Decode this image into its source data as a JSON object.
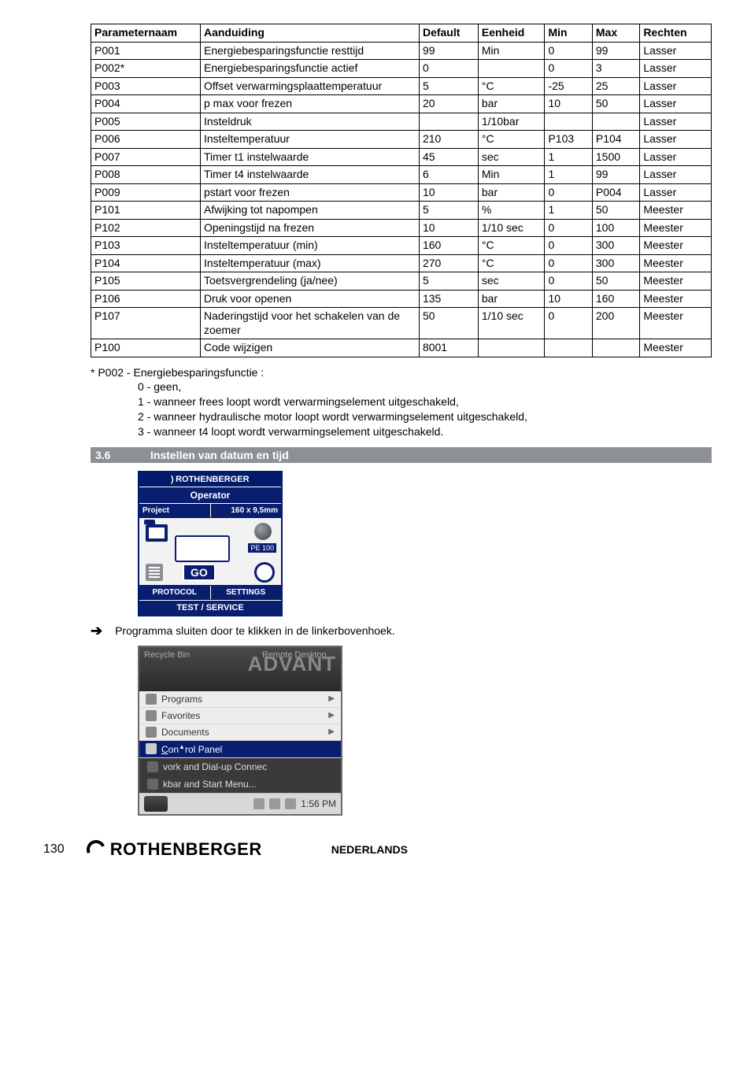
{
  "table": {
    "headers": [
      "Parameternaam",
      "Aanduiding",
      "Default",
      "Eenheid",
      "Min",
      "Max",
      "Rechten"
    ],
    "rows": [
      [
        "P001",
        "Energiebesparingsfunctie resttijd",
        "99",
        "Min",
        "0",
        "99",
        "Lasser"
      ],
      [
        "P002*",
        "Energiebesparingsfunctie actief",
        "0",
        "",
        "0",
        "3",
        "Lasser"
      ],
      [
        "P003",
        "Offset verwarmingsplaattemperatuur",
        "5",
        "°C",
        "-25",
        "25",
        "Lasser"
      ],
      [
        "P004",
        "p max voor frezen",
        "20",
        "bar",
        "10",
        "50",
        "Lasser"
      ],
      [
        "P005",
        "Insteldruk",
        "",
        "1/10bar",
        "",
        "",
        "Lasser"
      ],
      [
        "P006",
        "Insteltemperatuur",
        "210",
        "°C",
        "P103",
        "P104",
        "Lasser"
      ],
      [
        "P007",
        "Timer t1 instelwaarde",
        "45",
        "sec",
        "1",
        "1500",
        "Lasser"
      ],
      [
        "P008",
        "Timer t4 instelwaarde",
        "6",
        "Min",
        "1",
        "99",
        "Lasser"
      ],
      [
        "P009",
        "pstart voor frezen",
        "10",
        "bar",
        "0",
        "P004",
        "Lasser"
      ],
      [
        "P101",
        "Afwijking tot napompen",
        "5",
        "%",
        "1",
        "50",
        "Meester"
      ],
      [
        "P102",
        "Openingstijd na frezen",
        "10",
        "1/10 sec",
        "0",
        "100",
        "Meester"
      ],
      [
        "P103",
        "Insteltemperatuur (min)",
        "160",
        "°C",
        "0",
        "300",
        "Meester"
      ],
      [
        "P104",
        "Insteltemperatuur (max)",
        "270",
        "°C",
        "0",
        "300",
        "Meester"
      ],
      [
        "P105",
        "Toetsvergrendeling (ja/nee)",
        "5",
        "sec",
        "0",
        "50",
        "Meester"
      ],
      [
        "P106",
        "Druk voor openen",
        "135",
        "bar",
        "10",
        "160",
        "Meester"
      ],
      [
        "P107",
        "Naderingstijd voor het schakelen van de zoemer",
        "50",
        "1/10 sec",
        "0",
        "200",
        "Meester"
      ],
      [
        "P100",
        "Code wijzigen",
        "8001",
        "",
        "",
        "",
        "Meester"
      ]
    ]
  },
  "footnote": {
    "lead": "* P002 - Energiebesparingsfunctie :",
    "lines": [
      "0 - geen,",
      "1 - wanneer frees loopt wordt verwarmingselement uitgeschakeld,",
      "2 - wanneer hydraulische motor loopt wordt verwarmingselement uitgeschakeld,",
      "3 - wanneer t4 loopt wordt verwarmingselement uitgeschakeld."
    ]
  },
  "section": {
    "num": "3.6",
    "title": "Instellen van datum en tijd"
  },
  "ui1": {
    "brand": "ROTHENBERGER",
    "operator": "Operator",
    "project": "Project",
    "dim": "160 x 9,5mm",
    "pe": "PE 100",
    "go": "GO",
    "protocol": "PROTOCOL",
    "settings": "SETTINGS",
    "test": "TEST / SERVICE"
  },
  "arrow_text": "Programma sluiten door te klikken in de linkerbovenhoek.",
  "ui2": {
    "top_left": "Recycle Bin",
    "top_right": "Remote Desktop ...",
    "adv": "ADVANT",
    "items": {
      "programs": "Programs",
      "favorites": "Favorites",
      "documents": "Documents",
      "control": "Control Panel"
    },
    "sub": {
      "net": "vork and Dial-up Connec",
      "task": "kbar and Start Menu..."
    },
    "clock": "1:56 PM"
  },
  "footer": {
    "page": "130",
    "brand": "ROTHENBERGER",
    "lang": "NEDERLANDS"
  },
  "colors": {
    "section_bg": "#8d9196",
    "navy": "#0a1e70",
    "border": "#000000"
  }
}
